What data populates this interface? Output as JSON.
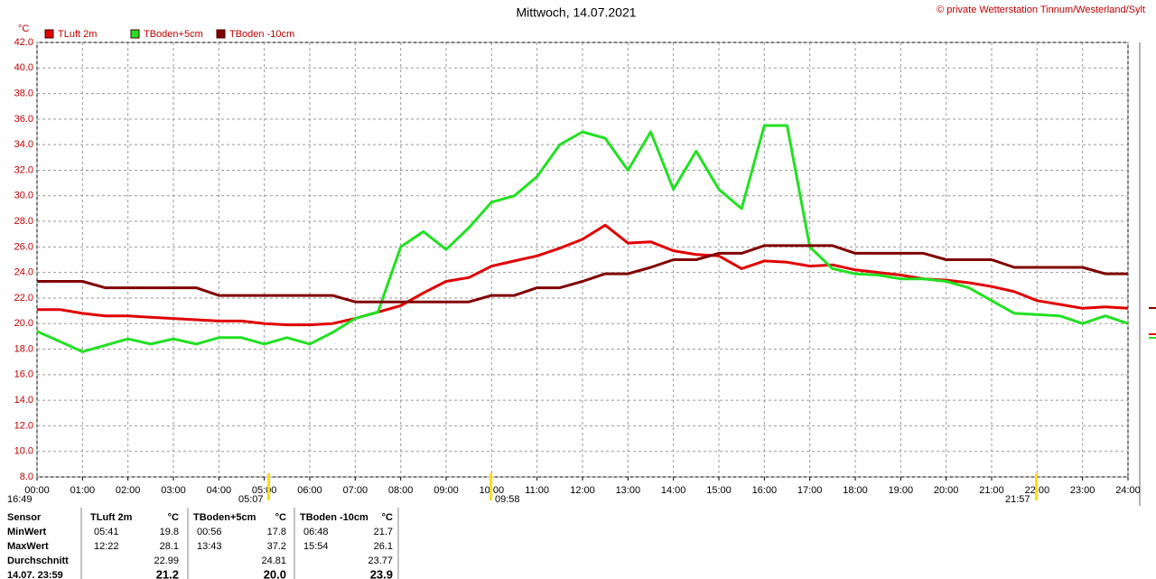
{
  "chart_data": {
    "type": "line",
    "title": "Mittwoch, 14.07.2021",
    "copyright": "© private Wetterstation Tinnum/Westerland/Sylt",
    "y_unit": "°C",
    "annotations": [
      "16:49",
      "05:07",
      "09:58",
      "21:57"
    ],
    "x": [
      0,
      0.5,
      1,
      1.5,
      2,
      2.5,
      3,
      3.5,
      4,
      4.5,
      5,
      5.5,
      6,
      6.5,
      7,
      7.5,
      8,
      8.5,
      9,
      9.5,
      10,
      10.5,
      11,
      11.5,
      12,
      12.5,
      13,
      13.5,
      14,
      14.5,
      15,
      15.5,
      16,
      16.5,
      17,
      17.5,
      18,
      18.5,
      19,
      19.5,
      20,
      20.5,
      21,
      21.5,
      22,
      22.5,
      23,
      23.5,
      24
    ],
    "series": [
      {
        "name": "TLuft 2m",
        "color": "#e00000",
        "values": [
          21.1,
          21.1,
          20.8,
          20.6,
          20.6,
          20.5,
          20.4,
          20.3,
          20.2,
          20.2,
          20.0,
          19.9,
          19.9,
          20.0,
          20.4,
          20.9,
          21.4,
          22.4,
          23.3,
          23.6,
          24.5,
          24.9,
          25.3,
          25.9,
          26.6,
          27.7,
          26.3,
          26.4,
          25.7,
          25.4,
          25.3,
          24.3,
          24.9,
          24.8,
          24.5,
          24.6,
          24.2,
          24.0,
          23.8,
          23.5,
          23.4,
          23.2,
          22.9,
          22.5,
          21.8,
          21.5,
          21.2,
          21.3,
          21.2
        ]
      },
      {
        "name": "TBoden+5cm",
        "color": "#22e022",
        "values": [
          19.4,
          18.6,
          17.8,
          18.3,
          18.8,
          18.4,
          18.8,
          18.4,
          18.9,
          18.9,
          18.4,
          18.9,
          18.4,
          19.3,
          20.4,
          20.9,
          26.0,
          27.2,
          25.8,
          27.5,
          29.5,
          30.0,
          31.5,
          34.0,
          35.0,
          34.5,
          32.0,
          35.0,
          30.5,
          33.5,
          30.5,
          29.0,
          35.5,
          35.5,
          26.0,
          24.3,
          23.9,
          23.8,
          23.5,
          23.5,
          23.3,
          22.8,
          21.8,
          20.8,
          20.7,
          20.6,
          20.0,
          20.6,
          20.0
        ]
      },
      {
        "name": "TBoden -10cm",
        "color": "#800000",
        "values": [
          23.3,
          23.3,
          23.3,
          22.8,
          22.8,
          22.8,
          22.8,
          22.8,
          22.2,
          22.2,
          22.2,
          22.2,
          22.2,
          22.2,
          21.7,
          21.7,
          21.7,
          21.7,
          21.7,
          21.7,
          22.2,
          22.2,
          22.8,
          22.8,
          23.3,
          23.9,
          23.9,
          24.4,
          25.0,
          25.0,
          25.5,
          25.5,
          26.1,
          26.1,
          26.1,
          26.1,
          25.5,
          25.5,
          25.5,
          25.5,
          25.0,
          25.0,
          25.0,
          24.4,
          24.4,
          24.4,
          24.4,
          23.9,
          23.9
        ]
      }
    ],
    "xlim": [
      0,
      24
    ],
    "xticks": [
      {
        "value": 0,
        "label": "00:00"
      },
      {
        "value": 1,
        "label": "01:00"
      },
      {
        "value": 2,
        "label": "02:00"
      },
      {
        "value": 3,
        "label": "03:00"
      },
      {
        "value": 4,
        "label": "04:00"
      },
      {
        "value": 5,
        "label": "05:00"
      },
      {
        "value": 6,
        "label": "06:00"
      },
      {
        "value": 7,
        "label": "07:00"
      },
      {
        "value": 8,
        "label": "08:00"
      },
      {
        "value": 9,
        "label": "09:00"
      },
      {
        "value": 10,
        "label": "10:00"
      },
      {
        "value": 11,
        "label": "11:00"
      },
      {
        "value": 12,
        "label": "12:00"
      },
      {
        "value": 13,
        "label": "13:00"
      },
      {
        "value": 14,
        "label": "14:00"
      },
      {
        "value": 15,
        "label": "15:00"
      },
      {
        "value": 16,
        "label": "16:00"
      },
      {
        "value": 17,
        "label": "17:00"
      },
      {
        "value": 18,
        "label": "18:00"
      },
      {
        "value": 19,
        "label": "19:00"
      },
      {
        "value": 20,
        "label": "20:00"
      },
      {
        "value": 21,
        "label": "21:00"
      },
      {
        "value": 22,
        "label": "22:00"
      },
      {
        "value": 23,
        "label": "23:00"
      },
      {
        "value": 24,
        "label": "24:00"
      }
    ],
    "ylim": [
      8,
      42
    ],
    "yticks": [
      {
        "value": 8,
        "label": "8.0"
      },
      {
        "value": 10,
        "label": "10.0"
      },
      {
        "value": 12,
        "label": "12.0"
      },
      {
        "value": 14,
        "label": "14.0"
      },
      {
        "value": 16,
        "label": "16.0"
      },
      {
        "value": 18,
        "label": "18.0"
      },
      {
        "value": 20,
        "label": "20.0"
      },
      {
        "value": 22,
        "label": "22.0"
      },
      {
        "value": 24,
        "label": "24.0"
      },
      {
        "value": 26,
        "label": "26.0"
      },
      {
        "value": 28,
        "label": "28.0"
      },
      {
        "value": 30,
        "label": "30.0"
      },
      {
        "value": 32,
        "label": "32.0"
      },
      {
        "value": 34,
        "label": "34.0"
      },
      {
        "value": 36,
        "label": "36.0"
      },
      {
        "value": 38,
        "label": "38.0"
      },
      {
        "value": 40,
        "label": "40.0"
      },
      {
        "value": 42,
        "label": "42.0"
      }
    ],
    "grid": true
  },
  "table": {
    "rows": [
      [
        "Sensor",
        "TLuft 2m",
        "°C",
        "TBoden+5cm",
        "°C",
        "TBoden -10cm",
        "°C"
      ],
      [
        "MinWert",
        "05:41",
        "19.8",
        "00:56",
        "17.8",
        "06:48",
        "21.7"
      ],
      [
        "MaxWert",
        "12:22",
        "28.1",
        "13:43",
        "37.2",
        "15:54",
        "26.1"
      ],
      [
        "Durchschnitt",
        null,
        "22.99",
        null,
        "24.81",
        null,
        "23.77"
      ],
      [
        "14.07. 23:59",
        null,
        "21.2",
        null,
        "20.0",
        null,
        "23.9"
      ]
    ]
  }
}
